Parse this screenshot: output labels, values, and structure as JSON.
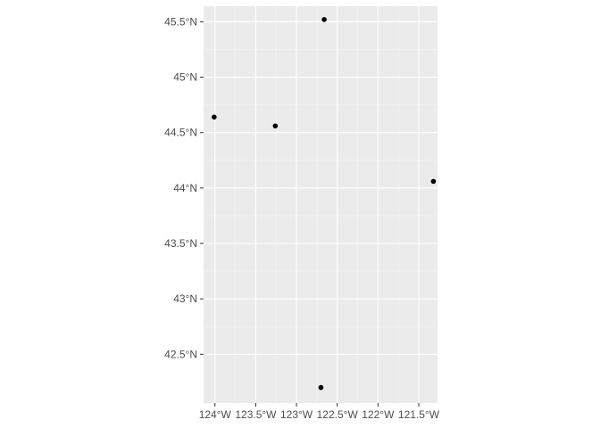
{
  "chart_data": {
    "type": "scatter",
    "title": "",
    "xlabel": "",
    "ylabel": "",
    "xlim": [
      -124.14,
      -121.27
    ],
    "ylim": [
      42.06,
      45.64
    ],
    "grid": true,
    "x_ticks": [
      {
        "value": -124.0,
        "label": "124°W"
      },
      {
        "value": -123.5,
        "label": "123.5°W"
      },
      {
        "value": -123.0,
        "label": "123°W"
      },
      {
        "value": -122.5,
        "label": "122.5°W"
      },
      {
        "value": -122.0,
        "label": "122°W"
      },
      {
        "value": -121.5,
        "label": "121.5°W"
      }
    ],
    "y_ticks": [
      {
        "value": 42.5,
        "label": "42.5°N"
      },
      {
        "value": 43.0,
        "label": "43°N"
      },
      {
        "value": 43.5,
        "label": "43.5°N"
      },
      {
        "value": 44.0,
        "label": "44°N"
      },
      {
        "value": 44.5,
        "label": "44.5°N"
      },
      {
        "value": 45.0,
        "label": "45°N"
      },
      {
        "value": 45.5,
        "label": "45.5°N"
      }
    ],
    "points": [
      {
        "x": -124.01,
        "y": 44.64
      },
      {
        "x": -123.26,
        "y": 44.56
      },
      {
        "x": -122.66,
        "y": 45.52
      },
      {
        "x": -121.32,
        "y": 44.06
      },
      {
        "x": -122.7,
        "y": 42.2
      }
    ],
    "colors": {
      "panel": "#ebebeb",
      "grid_major": "#ffffff",
      "grid_minor": "#f5f5f5",
      "point": "#000000",
      "tick": "#333333",
      "label": "#4d4d4d"
    }
  }
}
